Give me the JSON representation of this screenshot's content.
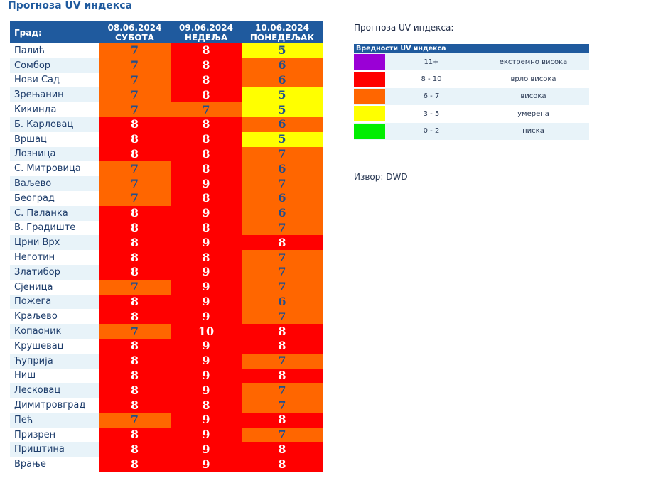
{
  "title": "Прогноза UV индекса",
  "colors": {
    "violet": "#9a00d6",
    "red": "#ff0000",
    "orange": "#ff6600",
    "yellow": "#ffff00",
    "green": "#00ee00",
    "header": "#1f5a9e"
  },
  "table": {
    "city_header": "Град:",
    "days": [
      {
        "date": "08.06.2024",
        "name": "СУБОТА"
      },
      {
        "date": "09.06.2024",
        "name": "НЕДЕЉА"
      },
      {
        "date": "10.06.2024",
        "name": "ПОНЕДЕЉАК"
      }
    ],
    "rows": [
      {
        "city": "Палић",
        "values": [
          "7",
          "8",
          "5"
        ]
      },
      {
        "city": "Сомбор",
        "values": [
          "7",
          "8",
          "6"
        ]
      },
      {
        "city": "Нови Сад",
        "values": [
          "7",
          "8",
          "6"
        ]
      },
      {
        "city": "Зрењанин",
        "values": [
          "7",
          "8",
          "5"
        ]
      },
      {
        "city": "Кикинда",
        "values": [
          "7",
          "7",
          "5"
        ]
      },
      {
        "city": "Б. Карловац",
        "values": [
          "8",
          "8",
          "6"
        ]
      },
      {
        "city": "Вршац",
        "values": [
          "8",
          "8",
          "5"
        ]
      },
      {
        "city": "Лозница",
        "values": [
          "8",
          "8",
          "7"
        ]
      },
      {
        "city": "С. Митровица",
        "values": [
          "7",
          "8",
          "6"
        ]
      },
      {
        "city": "Ваљево",
        "values": [
          "7",
          "9",
          "7"
        ]
      },
      {
        "city": "Београд",
        "values": [
          "7",
          "8",
          "6"
        ]
      },
      {
        "city": "С. Паланка",
        "values": [
          "8",
          "9",
          "6"
        ]
      },
      {
        "city": "В. Градиште",
        "values": [
          "8",
          "8",
          "7"
        ]
      },
      {
        "city": "Црни Врх",
        "values": [
          "8",
          "9",
          "8"
        ]
      },
      {
        "city": "Неготин",
        "values": [
          "8",
          "8",
          "7"
        ]
      },
      {
        "city": "Златибор",
        "values": [
          "8",
          "9",
          "7"
        ]
      },
      {
        "city": "Сјеница",
        "values": [
          "7",
          "9",
          "7"
        ]
      },
      {
        "city": "Пожега",
        "values": [
          "8",
          "9",
          "6"
        ]
      },
      {
        "city": "Краљево",
        "values": [
          "8",
          "9",
          "7"
        ]
      },
      {
        "city": "Копаоник",
        "values": [
          "7",
          "10",
          "8"
        ]
      },
      {
        "city": "Крушевац",
        "values": [
          "8",
          "9",
          "8"
        ]
      },
      {
        "city": "Ћуприја",
        "values": [
          "8",
          "9",
          "7"
        ]
      },
      {
        "city": "Ниш",
        "values": [
          "8",
          "9",
          "8"
        ]
      },
      {
        "city": "Лесковац",
        "values": [
          "8",
          "9",
          "7"
        ]
      },
      {
        "city": "Димитровград",
        "values": [
          "8",
          "8",
          "7"
        ]
      },
      {
        "city": "Пећ",
        "values": [
          "7",
          "9",
          "8"
        ]
      },
      {
        "city": "Призрен",
        "values": [
          "8",
          "9",
          "7"
        ]
      },
      {
        "city": "Приштина",
        "values": [
          "8",
          "9",
          "8"
        ]
      },
      {
        "city": "Врање",
        "values": [
          "8",
          "9",
          "8"
        ]
      }
    ]
  },
  "legend": {
    "title": "Прогноза UV индекса:",
    "header": "Вредности UV индекса",
    "items": [
      {
        "range": "11+",
        "label": "екстремно висока",
        "color": "#9a00d6"
      },
      {
        "range": "8 - 10",
        "label": "врло висока",
        "color": "#ff0000"
      },
      {
        "range": "6 - 7",
        "label": "висока",
        "color": "#ff6600"
      },
      {
        "range": "3 - 5",
        "label": "умерена",
        "color": "#ffff00"
      },
      {
        "range": "0 - 2",
        "label": "ниска",
        "color": "#00ee00"
      }
    ]
  },
  "source": "Извор: DWD"
}
